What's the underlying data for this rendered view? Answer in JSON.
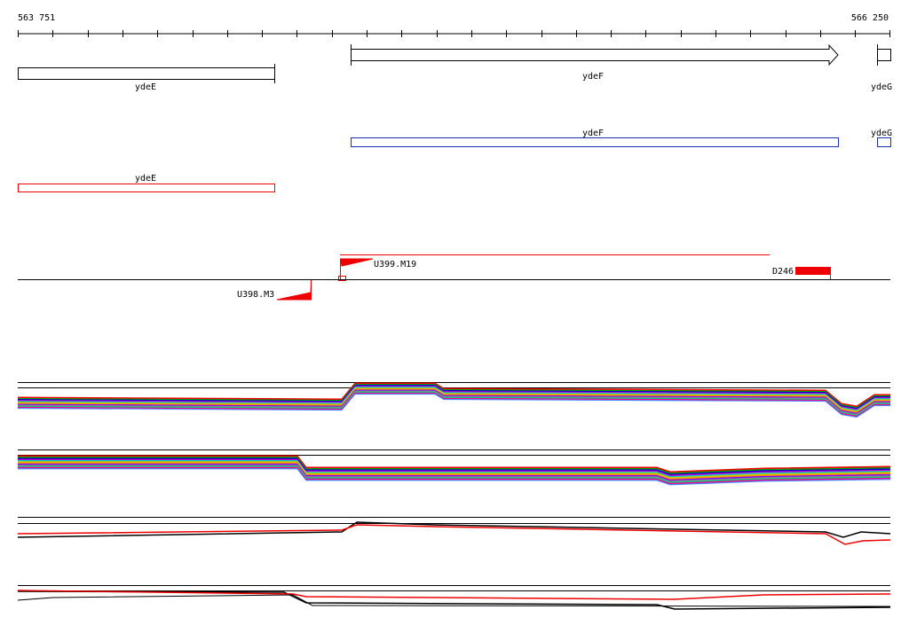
{
  "ruler": {
    "start": "563 751",
    "end": "566 250"
  },
  "genes": [
    {
      "label": "ydeE"
    },
    {
      "label": "ydeF"
    },
    {
      "label": "ydeG"
    }
  ],
  "cds": [
    {
      "label": "ydeF"
    },
    {
      "label": "ydeG"
    },
    {
      "label": "ydeE"
    }
  ],
  "features": [
    {
      "label": "U399.M19"
    },
    {
      "label": "D246"
    },
    {
      "label": "U398.M3"
    }
  ]
}
